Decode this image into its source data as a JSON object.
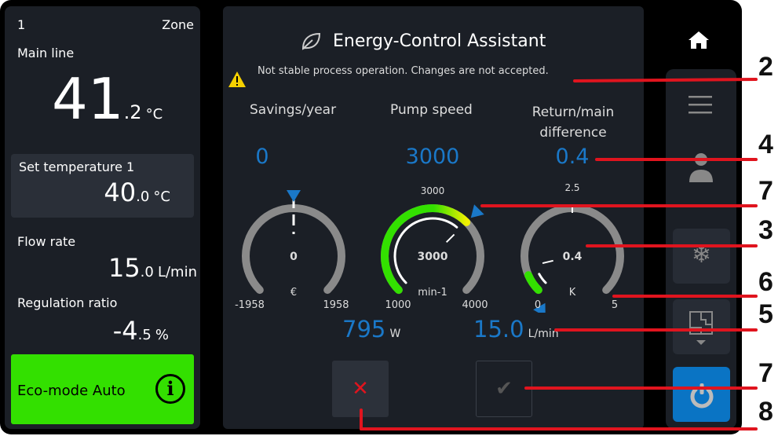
{
  "left": {
    "zone_number": "1",
    "zone_label": "Zone",
    "main_line_label": "Main line",
    "main_temp_int": "41",
    "main_temp_dec": ".2",
    "main_temp_unit": "°C",
    "set_temp_label": "Set temperature 1",
    "set_temp_int": "40",
    "set_temp_dec": ".0",
    "set_temp_unit": "°C",
    "flow_label": "Flow rate",
    "flow_int": "15",
    "flow_dec": ".0",
    "flow_unit": "L/min",
    "reg_label": "Regulation ratio",
    "reg_int": "-4",
    "reg_dec": ".5",
    "reg_unit": "%",
    "eco_label": "Eco-mode Auto",
    "eco_color": "#33e000"
  },
  "center": {
    "title": "Energy-Control Assistant",
    "title_icon": "leaf-icon",
    "warning": "Not stable process operation. Changes are not accepted.",
    "col1": "Savings/year",
    "col2": "Pump speed",
    "col3a": "Return/main",
    "col3b": "difference",
    "val1": "0",
    "val2": "3000",
    "val3": "0.4",
    "power_value": "795",
    "power_unit": "W",
    "flow_value": "15.0",
    "flow_unit": "L/min"
  },
  "gauges": [
    {
      "min": -1958,
      "max": 1958,
      "value": 0,
      "setpoint": 0,
      "center_label": "0",
      "unit": "€",
      "min_label": "-1958",
      "max_label": "1958",
      "top_label": "0",
      "fill": false
    },
    {
      "min": 1000,
      "max": 4000,
      "value": 3000,
      "setpoint": 3000,
      "center_label": "3000",
      "unit": "min-1",
      "min_label": "1000",
      "max_label": "4000",
      "top_label": "3000",
      "fill": true
    },
    {
      "min": 0,
      "max": 5,
      "value": 0.4,
      "setpoint": 0,
      "center_label": "0.4",
      "unit": "K",
      "min_label": "0",
      "max_label": "5",
      "top_label": "2.5",
      "fill": true
    }
  ],
  "sidebar": [
    "home-icon",
    "menu-icon",
    "user-icon",
    "snowflake-icon",
    "floor-plan-icon",
    "power-icon"
  ],
  "callouts": [
    "2",
    "4",
    "7",
    "3",
    "6",
    "5",
    "7",
    "8"
  ],
  "colors": {
    "accent": "#1a78c8",
    "green": "#33e000",
    "callout": "#e0141e",
    "cancel": "#e0141e"
  }
}
